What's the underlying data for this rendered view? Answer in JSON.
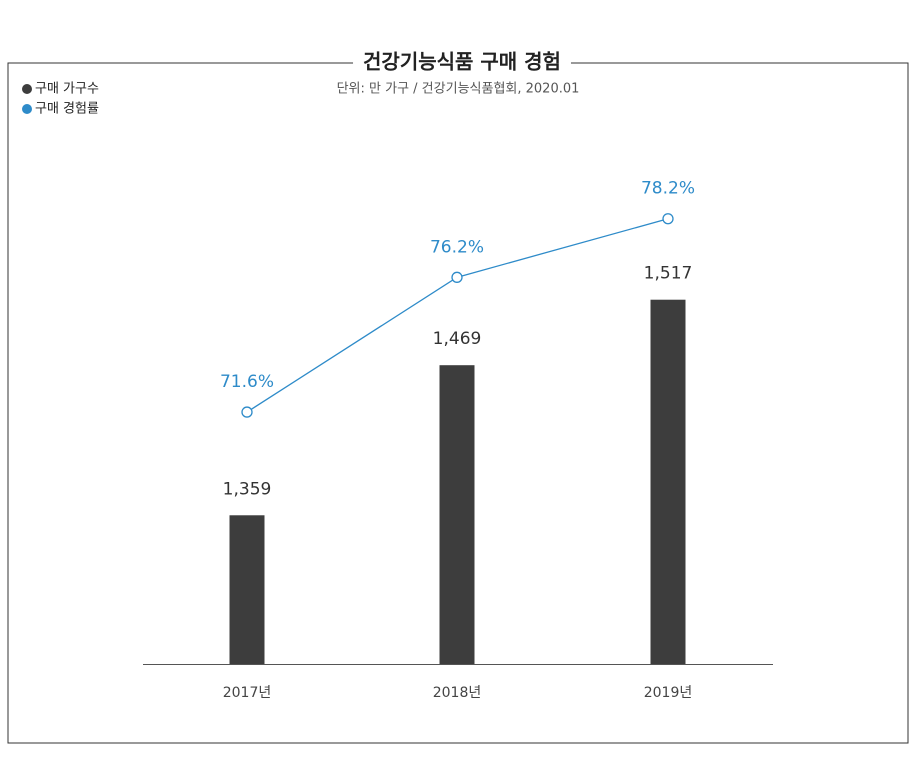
{
  "chart_data": {
    "type": "combo",
    "title": "건강기능식품 구매 경험",
    "subtitle": "단위: 만 가구 / 건강기능식품협회, 2020.01",
    "categories": [
      "2017년",
      "2018년",
      "2019년"
    ],
    "series": [
      {
        "name": "구매 가구수",
        "type": "bar",
        "color": "#3d3d3d",
        "values": [
          1359,
          1469,
          1517
        ],
        "value_labels": [
          "1,359",
          "1,469",
          "1,517"
        ]
      },
      {
        "name": "구매 경험률",
        "type": "line",
        "axis": "y2",
        "color": "#2e8bc9",
        "values": [
          71.6,
          76.2,
          78.2
        ],
        "value_labels": [
          "71.6%",
          "76.2%",
          "78.2%"
        ]
      }
    ],
    "ylim": [
      1250,
      1615
    ],
    "y2lim": [
      63,
      80
    ],
    "legend": "top-left"
  }
}
